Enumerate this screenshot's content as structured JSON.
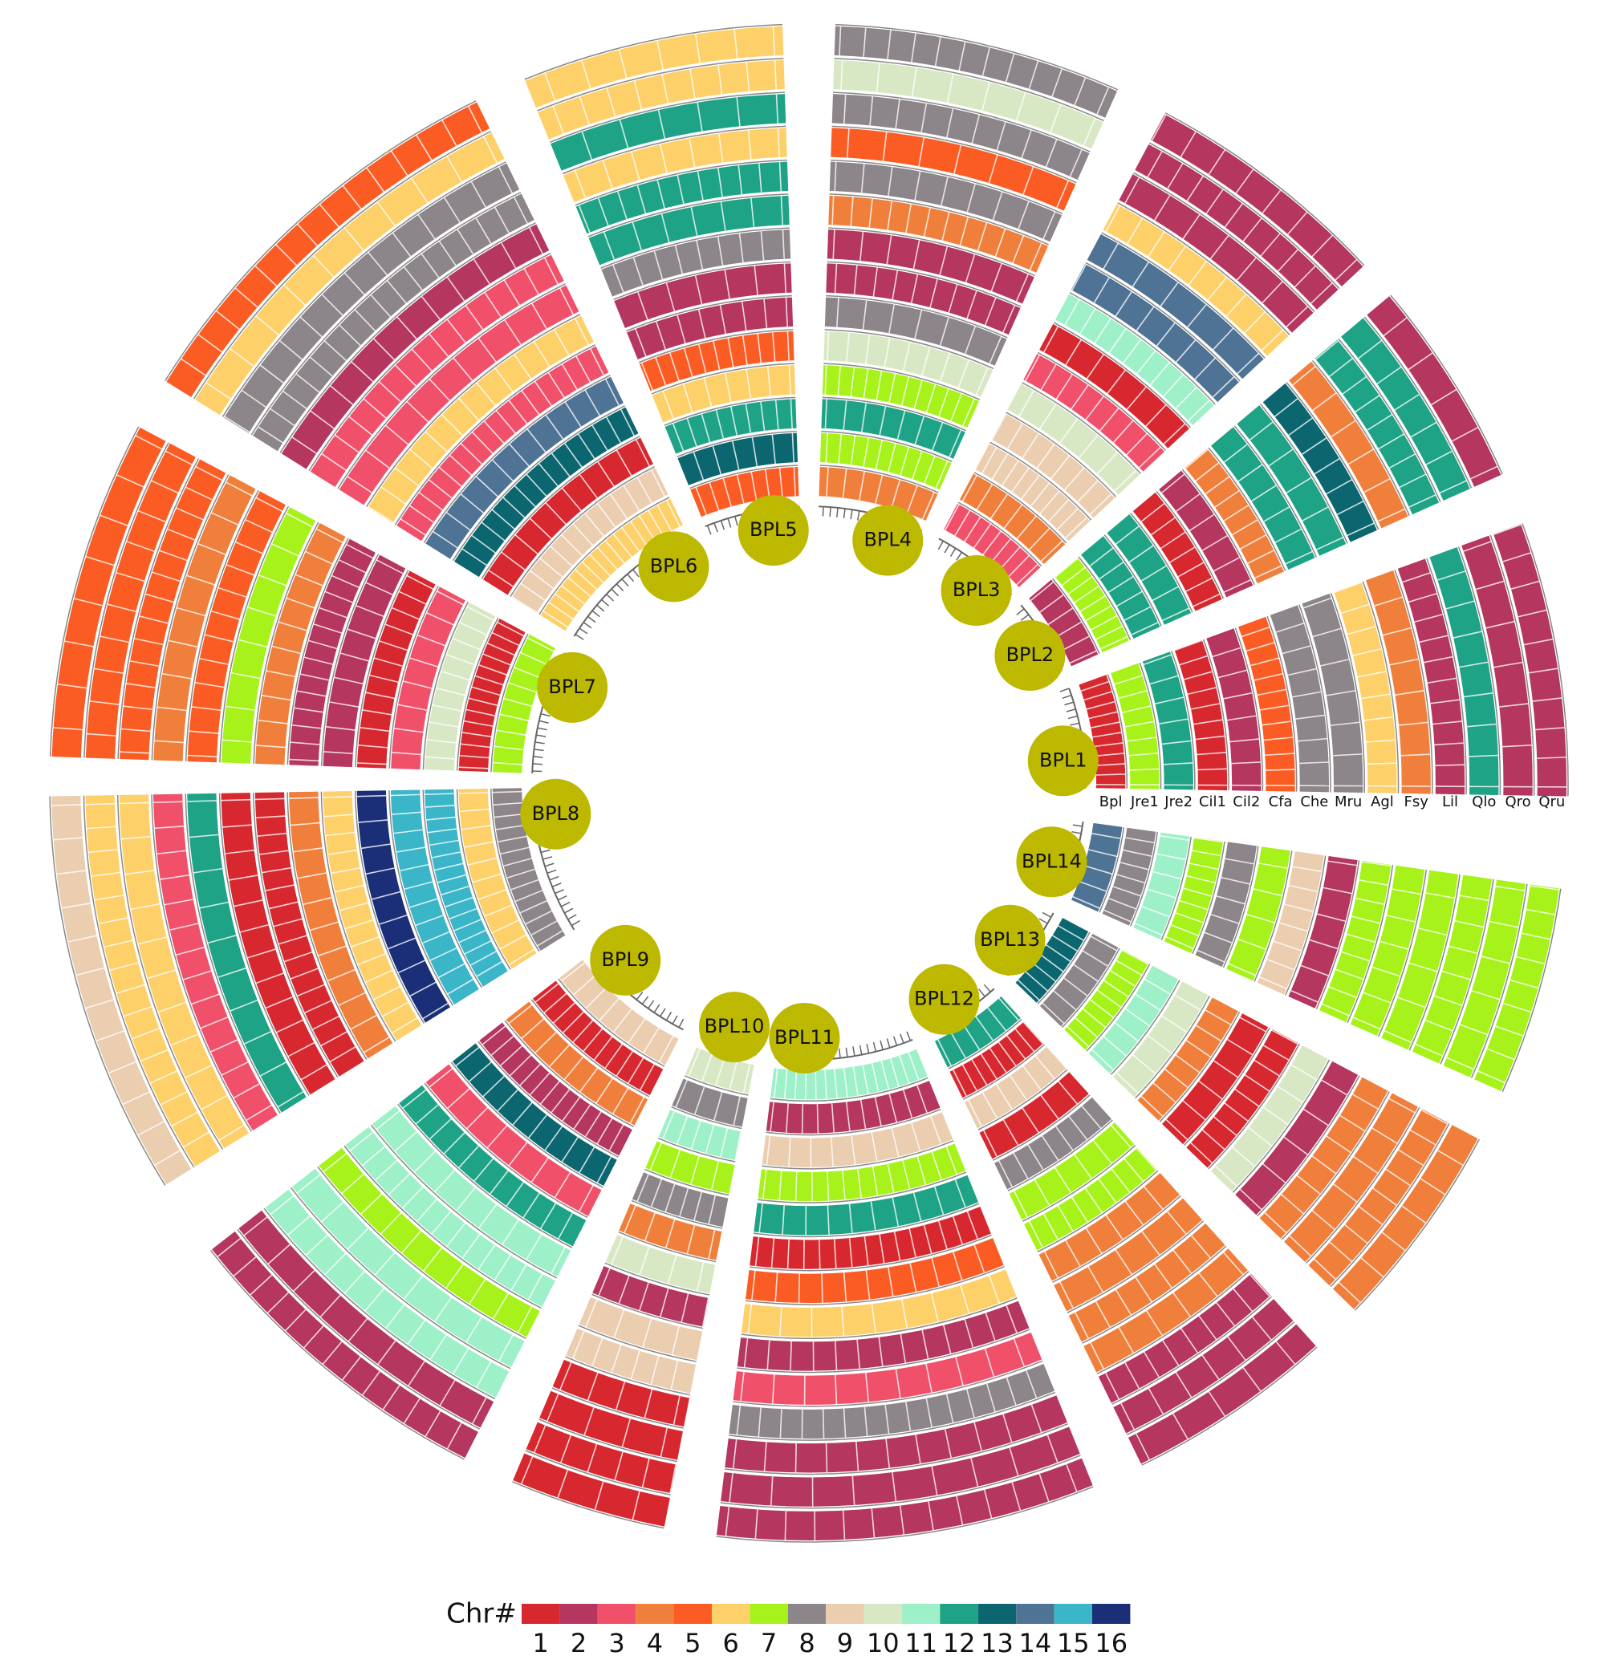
{
  "tracks": [
    "Bpl",
    "Jre1",
    "Jre2",
    "Cil1",
    "Cil2",
    "Cfa",
    "Che",
    "Mru",
    "Agl",
    "Fsy",
    "Lil",
    "Qlo",
    "Qro",
    "Qru"
  ],
  "sectors": [
    {
      "label": "BPL1",
      "dominant_chr": [
        1,
        7,
        12,
        1,
        2,
        5,
        8,
        8,
        6,
        4,
        2,
        12,
        2,
        2
      ]
    },
    {
      "label": "BPL2",
      "dominant_chr": [
        2,
        7,
        12,
        12,
        1,
        2,
        4,
        12,
        12,
        13,
        4,
        12,
        12,
        2
      ]
    },
    {
      "label": "BPL3",
      "dominant_chr": [
        3,
        4,
        9,
        9,
        10,
        3,
        1,
        11,
        14,
        14,
        6,
        2,
        2,
        2
      ]
    },
    {
      "label": "BPL4",
      "dominant_chr": [
        4,
        7,
        12,
        7,
        10,
        8,
        2,
        2,
        4,
        8,
        5,
        8,
        10,
        8
      ]
    },
    {
      "label": "BPL5",
      "dominant_chr": [
        5,
        13,
        12,
        6,
        5,
        2,
        2,
        8,
        12,
        12,
        6,
        12,
        6,
        6
      ]
    },
    {
      "label": "BPL6",
      "dominant_chr": [
        6,
        9,
        1,
        13,
        14,
        3,
        6,
        3,
        3,
        2,
        8,
        8,
        6,
        5
      ]
    },
    {
      "label": "BPL7",
      "dominant_chr": [
        7,
        1,
        10,
        3,
        1,
        2,
        2,
        4,
        7,
        5,
        4,
        5,
        5,
        5
      ]
    },
    {
      "label": "BPL8",
      "dominant_chr": [
        8,
        6,
        15,
        15,
        16,
        6,
        4,
        1,
        1,
        12,
        3,
        6,
        6,
        9
      ]
    },
    {
      "label": "BPL9",
      "dominant_chr": [
        9,
        1,
        4,
        2,
        13,
        3,
        12,
        11,
        11,
        7,
        11,
        11,
        2,
        2
      ]
    },
    {
      "label": "BPL10",
      "dominant_chr": [
        10,
        8,
        11,
        7,
        8,
        4,
        10,
        2,
        9,
        9,
        1,
        1,
        1,
        1
      ]
    },
    {
      "label": "BPL11",
      "dominant_chr": [
        11,
        2,
        9,
        7,
        12,
        1,
        5,
        6,
        2,
        3,
        8,
        2,
        2,
        2
      ]
    },
    {
      "label": "BPL12",
      "dominant_chr": [
        12,
        1,
        9,
        1,
        8,
        7,
        7,
        4,
        4,
        4,
        4,
        2,
        2,
        2
      ]
    },
    {
      "label": "BPL13",
      "dominant_chr": [
        13,
        8,
        7,
        11,
        10,
        4,
        1,
        1,
        10,
        2,
        4,
        4,
        4,
        4
      ]
    },
    {
      "label": "BPL14",
      "dominant_chr": [
        14,
        8,
        11,
        7,
        8,
        7,
        9,
        2,
        7,
        7,
        7,
        7,
        7,
        7
      ]
    }
  ],
  "legend": {
    "title": "Chr#",
    "items": [
      {
        "label": "1",
        "color": "#d7282f"
      },
      {
        "label": "2",
        "color": "#b5365f"
      },
      {
        "label": "3",
        "color": "#f0506a"
      },
      {
        "label": "4",
        "color": "#f07f3c"
      },
      {
        "label": "5",
        "color": "#fb5c24"
      },
      {
        "label": "6",
        "color": "#fdd06a"
      },
      {
        "label": "7",
        "color": "#a6f21a"
      },
      {
        "label": "8",
        "color": "#8c8589"
      },
      {
        "label": "9",
        "color": "#ebcdb0"
      },
      {
        "label": "10",
        "color": "#d9e8c4"
      },
      {
        "label": "11",
        "color": "#9ef0c8"
      },
      {
        "label": "12",
        "color": "#1fa386"
      },
      {
        "label": "13",
        "color": "#0c6670"
      },
      {
        "label": "14",
        "color": "#4f7394"
      },
      {
        "label": "15",
        "color": "#3bb5c8"
      },
      {
        "label": "16",
        "color": "#1a2f78"
      }
    ]
  }
}
